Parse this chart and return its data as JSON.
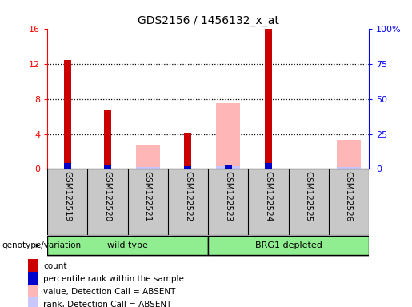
{
  "title": "GDS2156 / 1456132_x_at",
  "samples": [
    "GSM122519",
    "GSM122520",
    "GSM122521",
    "GSM122522",
    "GSM122523",
    "GSM122524",
    "GSM122525",
    "GSM122526"
  ],
  "count_values": [
    12.5,
    6.8,
    0.0,
    4.1,
    0.0,
    16.0,
    0.0,
    0.0
  ],
  "percentile_values": [
    4.3,
    2.5,
    0.0,
    1.8,
    3.0,
    4.3,
    0.0,
    0.0
  ],
  "absent_value_values": [
    0.0,
    0.0,
    2.8,
    0.0,
    7.5,
    0.0,
    0.0,
    3.3
  ],
  "absent_rank_values": [
    0.0,
    0.0,
    1.0,
    0.0,
    1.6,
    0.0,
    0.15,
    1.0
  ],
  "ylim_left": [
    0,
    16
  ],
  "ylim_right": [
    0,
    100
  ],
  "yticks_left": [
    0,
    4,
    8,
    12,
    16
  ],
  "ytick_labels_left": [
    "0",
    "4",
    "8",
    "12",
    "16"
  ],
  "yticks_right": [
    0,
    25,
    50,
    75,
    100
  ],
  "ytick_labels_right": [
    "0",
    "25",
    "50",
    "75",
    "100%"
  ],
  "count_color": "#cc0000",
  "percentile_color": "#0000cc",
  "absent_value_color": "#ffb6b6",
  "absent_rank_color": "#c8c8ff",
  "bg_color": "#c8c8c8",
  "group_green": "#90ee90",
  "legend_items": [
    {
      "color": "#cc0000",
      "label": "count"
    },
    {
      "color": "#0000cc",
      "label": "percentile rank within the sample"
    },
    {
      "color": "#ffb6b6",
      "label": "value, Detection Call = ABSENT"
    },
    {
      "color": "#c8c8ff",
      "label": "rank, Detection Call = ABSENT"
    }
  ],
  "genotype_label": "genotype/variation",
  "wild_type_label": "wild type",
  "brg1_label": "BRG1 depleted",
  "title_fontsize": 10,
  "tick_fontsize": 8,
  "sample_fontsize": 7.5,
  "legend_fontsize": 7.5,
  "group_fontsize": 8,
  "genotype_fontsize": 7.5
}
